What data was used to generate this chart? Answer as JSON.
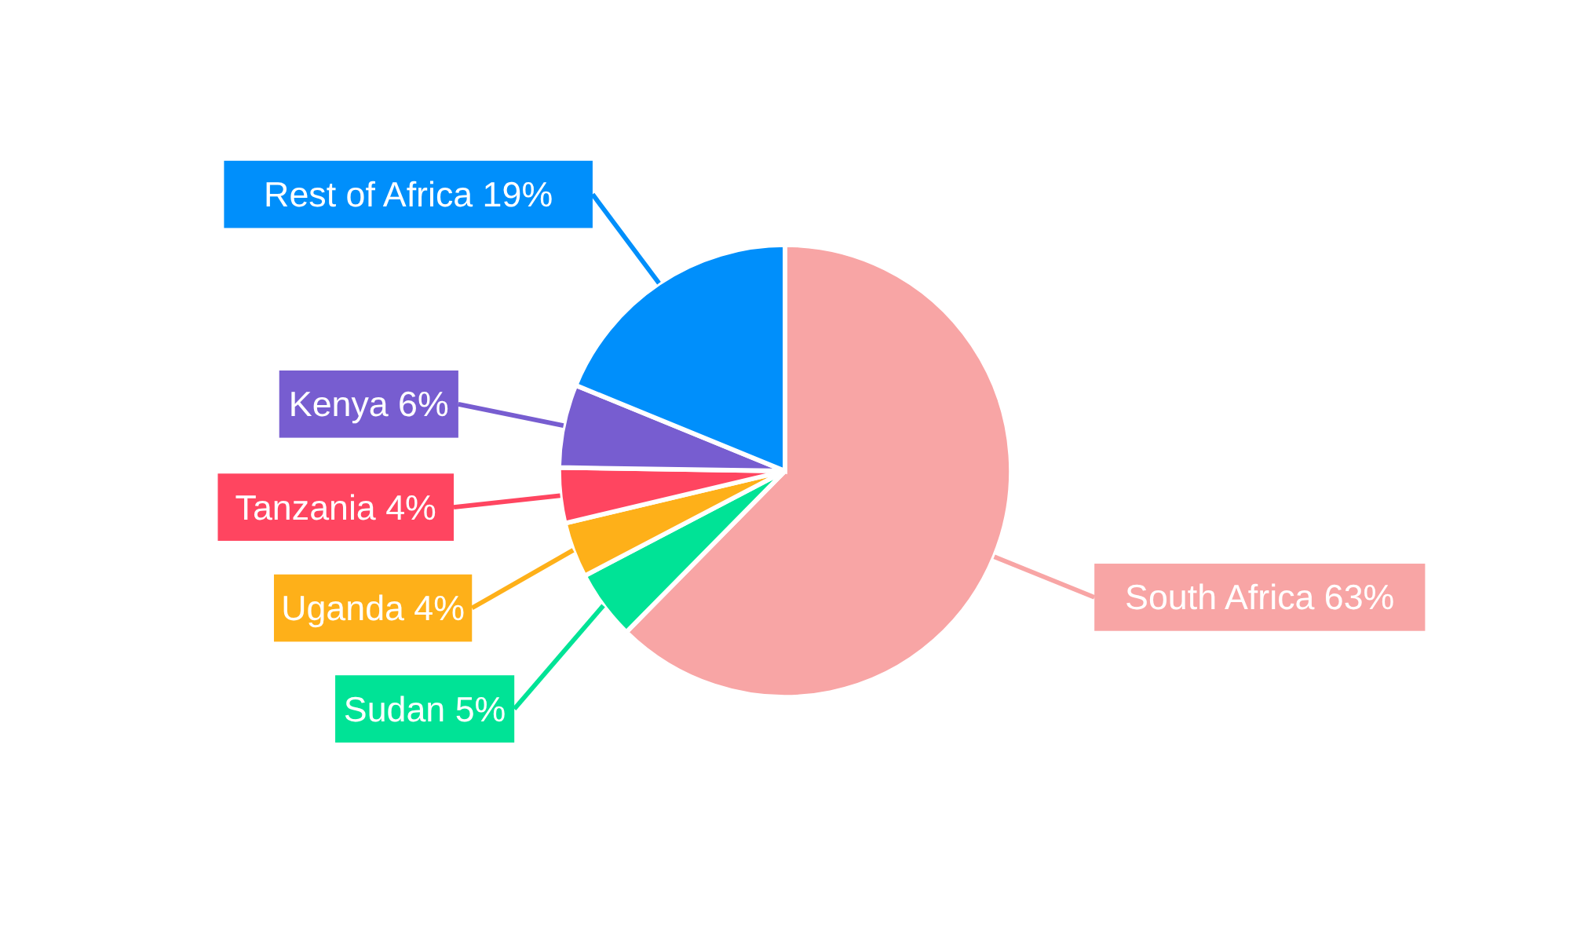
{
  "chart_data": {
    "type": "pie",
    "categories": [
      "South Africa",
      "Sudan",
      "Uganda",
      "Tanzania",
      "Kenya",
      "Rest of Africa"
    ],
    "values": [
      63,
      5,
      4,
      4,
      6,
      19
    ],
    "value_labels": [
      "63%",
      "5%",
      "4%",
      "4%",
      "6%",
      "19%"
    ],
    "colors": [
      "#f8a5a5",
      "#00e396",
      "#feb019",
      "#ff4560",
      "#775dd0",
      "#008ffb"
    ],
    "legend": false
  }
}
